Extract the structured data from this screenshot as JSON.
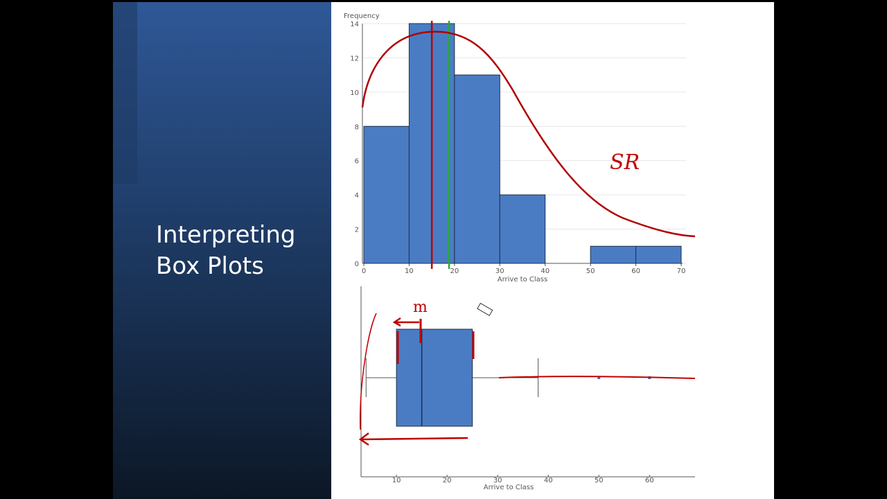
{
  "slide": {
    "title_lines": [
      "Interpreting",
      "Box Plots"
    ]
  },
  "chart_data": [
    {
      "type": "histogram",
      "y_label": "Frequency",
      "x_label": "Arrive to Class",
      "bins": [
        0,
        10,
        20,
        30,
        40,
        50,
        60,
        70
      ],
      "values": [
        8,
        14,
        11,
        4,
        0,
        1,
        1
      ],
      "color": "#4a7cc4",
      "xlim": [
        0,
        70
      ],
      "xticks": [
        0,
        10,
        20,
        30,
        40,
        50,
        60,
        70
      ],
      "ylim": [
        0,
        14
      ],
      "yticks": [
        0,
        2,
        4,
        6,
        8,
        10,
        12,
        14
      ],
      "grid": true,
      "markers": [
        {
          "x": 15,
          "color": "#c00000"
        },
        {
          "x": 18.8,
          "color": "#22b022"
        }
      ],
      "annotations": [
        "SR"
      ]
    },
    {
      "type": "box",
      "x_label": "Arrive to Class",
      "color": "#4a7cc4",
      "whisker_low": 4,
      "q1": 10,
      "median": 15,
      "q3": 25,
      "whisker_high": 38,
      "outliers": [
        50,
        60
      ],
      "xlim": [
        3,
        69
      ],
      "xticks": [
        10,
        20,
        30,
        40,
        50,
        60
      ],
      "annotations": [
        "m"
      ]
    }
  ]
}
